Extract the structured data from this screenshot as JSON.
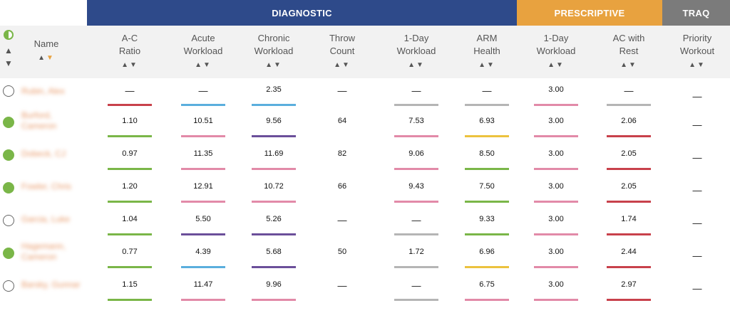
{
  "banners": {
    "diagnostic": {
      "label": "DIAGNOSTIC",
      "color": "#2e4a8a"
    },
    "prescriptive": {
      "label": "PRESCRIPTIVE",
      "color": "#e8a23f"
    },
    "traq": {
      "label": "TRAQ",
      "color": "#7b7b7b"
    }
  },
  "columns": {
    "name": {
      "label": "Name"
    },
    "ac_ratio": {
      "label": [
        "A-C",
        "Ratio"
      ]
    },
    "acute": {
      "label": [
        "Acute",
        "Workload"
      ]
    },
    "chronic": {
      "label": [
        "Chronic",
        "Workload"
      ]
    },
    "throw": {
      "label": [
        "Throw",
        "Count"
      ]
    },
    "day_diag": {
      "label": [
        "1-Day",
        "Workload"
      ]
    },
    "arm": {
      "label": [
        "ARM",
        "Health"
      ]
    },
    "day_pres": {
      "label": [
        "1-Day",
        "Workload"
      ]
    },
    "ac_rest": {
      "label": [
        "AC with",
        "Rest"
      ]
    },
    "priority": {
      "label": [
        "Priority",
        "Workout"
      ]
    }
  },
  "sort_glyphs": {
    "up": "▲",
    "down": "▼"
  },
  "colors": {
    "red": "#c8414b",
    "blue": "#5aaedd",
    "green": "#7ab648",
    "pink": "#e28aa8",
    "purple": "#6b4f9a",
    "gray": "#b5b5b5",
    "yellow": "#ecc23e"
  },
  "rows": [
    {
      "active": false,
      "name": "Rubin, Alex",
      "cells": {
        "ac_ratio": {
          "v": "—",
          "c": "red"
        },
        "acute": {
          "v": "—",
          "c": "blue"
        },
        "chronic": {
          "v": "2.35",
          "c": "blue"
        },
        "throw": {
          "v": "—",
          "c": null
        },
        "day_diag": {
          "v": "—",
          "c": "gray"
        },
        "arm": {
          "v": "—",
          "c": "gray"
        },
        "day_pres": {
          "v": "3.00",
          "c": "pink"
        },
        "ac_rest": {
          "v": "—",
          "c": "gray"
        },
        "priority": {
          "v": "—",
          "c": null
        }
      }
    },
    {
      "active": true,
      "name": "Burford, Cameron",
      "cells": {
        "ac_ratio": {
          "v": "1.10",
          "c": "green"
        },
        "acute": {
          "v": "10.51",
          "c": "pink"
        },
        "chronic": {
          "v": "9.56",
          "c": "purple"
        },
        "throw": {
          "v": "64",
          "c": null
        },
        "day_diag": {
          "v": "7.53",
          "c": "pink"
        },
        "arm": {
          "v": "6.93",
          "c": "yellow"
        },
        "day_pres": {
          "v": "3.00",
          "c": "pink"
        },
        "ac_rest": {
          "v": "2.06",
          "c": "red"
        },
        "priority": {
          "v": "—",
          "c": null
        }
      }
    },
    {
      "active": true,
      "name": "Dobeck, CJ",
      "cells": {
        "ac_ratio": {
          "v": "0.97",
          "c": "green"
        },
        "acute": {
          "v": "11.35",
          "c": "pink"
        },
        "chronic": {
          "v": "11.69",
          "c": "pink"
        },
        "throw": {
          "v": "82",
          "c": null
        },
        "day_diag": {
          "v": "9.06",
          "c": "pink"
        },
        "arm": {
          "v": "8.50",
          "c": "green"
        },
        "day_pres": {
          "v": "3.00",
          "c": "pink"
        },
        "ac_rest": {
          "v": "2.05",
          "c": "red"
        },
        "priority": {
          "v": "—",
          "c": null
        }
      }
    },
    {
      "active": true,
      "name": "Fowler, Chris",
      "cells": {
        "ac_ratio": {
          "v": "1.20",
          "c": "green"
        },
        "acute": {
          "v": "12.91",
          "c": "pink"
        },
        "chronic": {
          "v": "10.72",
          "c": "pink"
        },
        "throw": {
          "v": "66",
          "c": null
        },
        "day_diag": {
          "v": "9.43",
          "c": "pink"
        },
        "arm": {
          "v": "7.50",
          "c": "green"
        },
        "day_pres": {
          "v": "3.00",
          "c": "pink"
        },
        "ac_rest": {
          "v": "2.05",
          "c": "red"
        },
        "priority": {
          "v": "—",
          "c": null
        }
      }
    },
    {
      "active": false,
      "name": "Garcia, Luke",
      "cells": {
        "ac_ratio": {
          "v": "1.04",
          "c": "green"
        },
        "acute": {
          "v": "5.50",
          "c": "purple"
        },
        "chronic": {
          "v": "5.26",
          "c": "purple"
        },
        "throw": {
          "v": "—",
          "c": null
        },
        "day_diag": {
          "v": "—",
          "c": "gray"
        },
        "arm": {
          "v": "9.33",
          "c": "green"
        },
        "day_pres": {
          "v": "3.00",
          "c": "pink"
        },
        "ac_rest": {
          "v": "1.74",
          "c": "red"
        },
        "priority": {
          "v": "—",
          "c": null
        }
      }
    },
    {
      "active": true,
      "name": "Hagemann, Cameron",
      "cells": {
        "ac_ratio": {
          "v": "0.77",
          "c": "green"
        },
        "acute": {
          "v": "4.39",
          "c": "blue"
        },
        "chronic": {
          "v": "5.68",
          "c": "purple"
        },
        "throw": {
          "v": "50",
          "c": null
        },
        "day_diag": {
          "v": "1.72",
          "c": "gray"
        },
        "arm": {
          "v": "6.96",
          "c": "yellow"
        },
        "day_pres": {
          "v": "3.00",
          "c": "pink"
        },
        "ac_rest": {
          "v": "2.44",
          "c": "red"
        },
        "priority": {
          "v": "—",
          "c": null
        }
      }
    },
    {
      "active": false,
      "name": "Barsky, Gunnar",
      "cells": {
        "ac_ratio": {
          "v": "1.15",
          "c": "green"
        },
        "acute": {
          "v": "11.47",
          "c": "pink"
        },
        "chronic": {
          "v": "9.96",
          "c": "pink"
        },
        "throw": {
          "v": "—",
          "c": null
        },
        "day_diag": {
          "v": "—",
          "c": "gray"
        },
        "arm": {
          "v": "6.75",
          "c": "pink"
        },
        "day_pres": {
          "v": "3.00",
          "c": "pink"
        },
        "ac_rest": {
          "v": "2.97",
          "c": "red"
        },
        "priority": {
          "v": "—",
          "c": null
        }
      }
    }
  ]
}
